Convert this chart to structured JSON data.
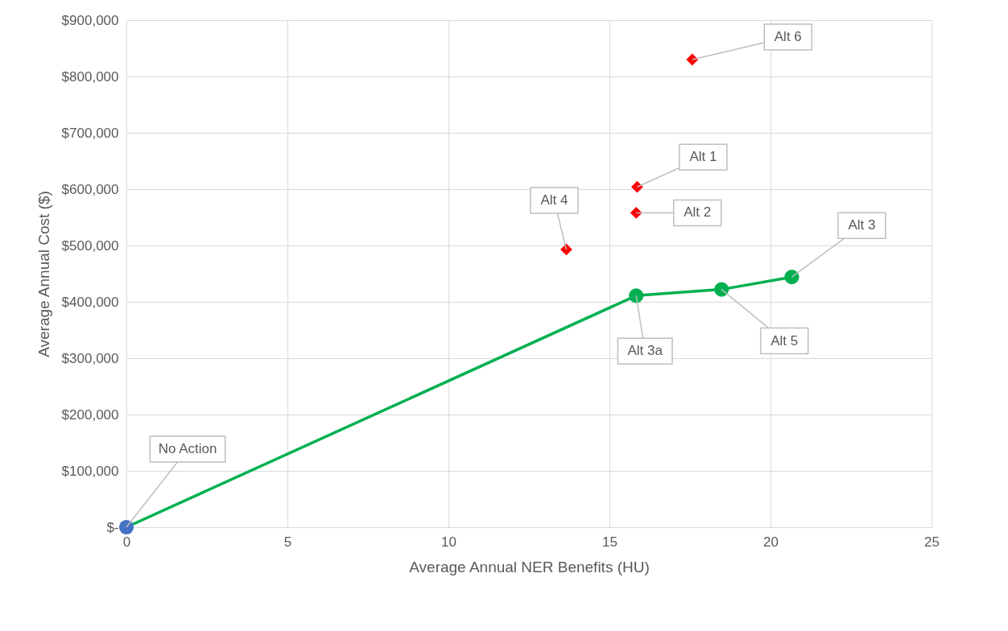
{
  "chart_data": {
    "type": "scatter",
    "xlabel": "Average Annual NER Benefits (HU)",
    "ylabel": "Average Annual Cost ($)",
    "xlim": [
      0,
      25
    ],
    "xticks": [
      0,
      5,
      10,
      15,
      20,
      25
    ],
    "ylim": [
      0,
      900000
    ],
    "yticks": [
      {
        "value": 0,
        "label": "$-"
      },
      {
        "value": 100000,
        "label": "$100,000"
      },
      {
        "value": 200000,
        "label": "$200,000"
      },
      {
        "value": 300000,
        "label": "$300,000"
      },
      {
        "value": 400000,
        "label": "$400,000"
      },
      {
        "value": 500000,
        "label": "$500,000"
      },
      {
        "value": 600000,
        "label": "$600,000"
      },
      {
        "value": 700000,
        "label": "$700,000"
      },
      {
        "value": 800000,
        "label": "$800,000"
      },
      {
        "value": 900000,
        "label": "$900,000"
      }
    ],
    "grid": true,
    "series": [
      {
        "type": "line",
        "color": "#00b050",
        "marker": "none",
        "x": [
          0,
          15.83,
          18.48,
          20.66
        ],
        "values": [
          0,
          411000,
          422000,
          444000
        ]
      },
      {
        "color": "#00b050",
        "marker": "circle",
        "x": [
          15.83,
          18.48,
          20.66
        ],
        "values": [
          411000,
          422000,
          444000
        ]
      },
      {
        "color": "#4472c4",
        "marker": "circle",
        "x": [
          0
        ],
        "values": [
          0
        ]
      },
      {
        "color": "#ff0000",
        "marker": "diamond",
        "x": [
          13.66,
          15.83,
          15.86,
          17.57
        ],
        "values": [
          493000,
          558000,
          604000,
          830000
        ]
      }
    ],
    "annotations": [
      {
        "text": "No Action",
        "x": 0,
        "y": 0
      },
      {
        "text": "Alt 3a",
        "x": 15.83,
        "y": 411000
      },
      {
        "text": "Alt 5",
        "x": 18.48,
        "y": 422000
      },
      {
        "text": "Alt 3",
        "x": 20.66,
        "y": 444000
      },
      {
        "text": "Alt 4",
        "x": 13.66,
        "y": 493000
      },
      {
        "text": "Alt 2",
        "x": 15.83,
        "y": 558000
      },
      {
        "text": "Alt 1",
        "x": 15.86,
        "y": 604000
      },
      {
        "text": "Alt 6",
        "x": 17.57,
        "y": 830000
      }
    ]
  }
}
